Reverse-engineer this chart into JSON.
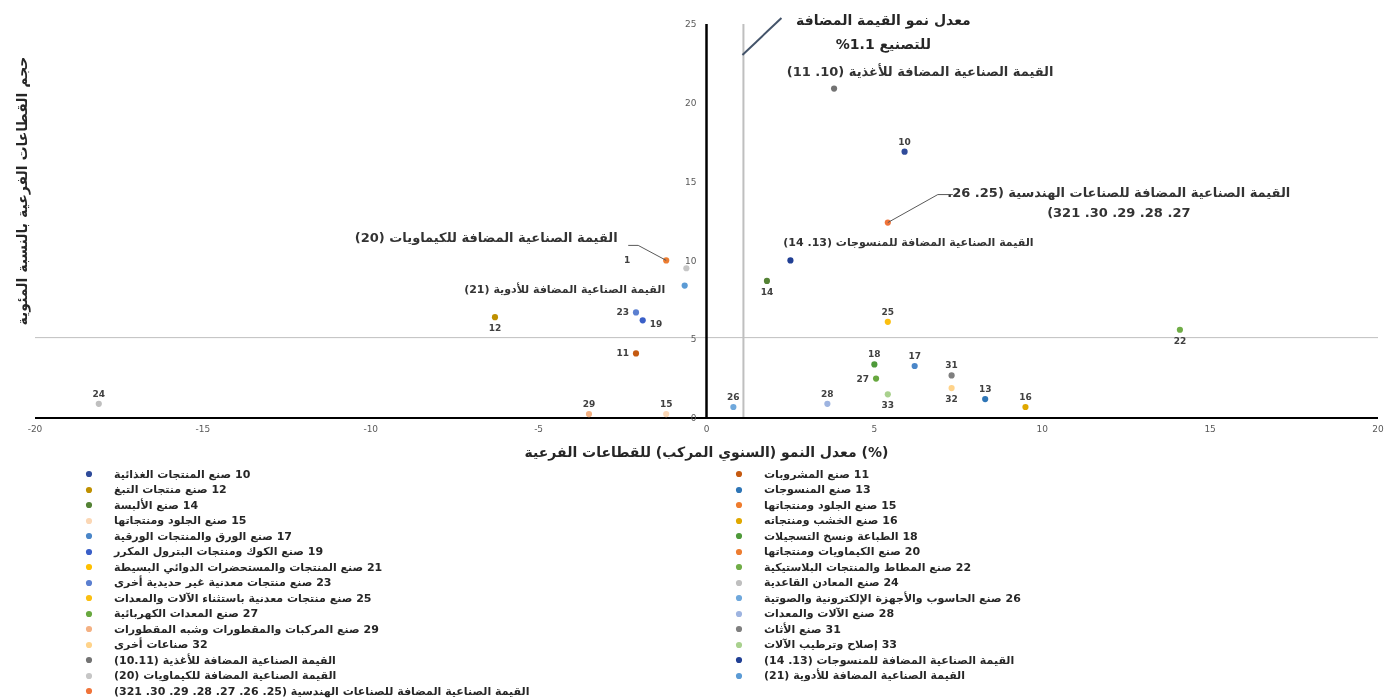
{
  "chart_data": {
    "type": "scatter",
    "xlabel": "معدل النمو (السنوي المركب) للقطاعات الفرعية (%)",
    "ylabel": "حجم القطاعات الفرعية بالنسبة المئوية",
    "xlim": [
      -20,
      20
    ],
    "ylim": [
      0,
      25
    ],
    "xticks": [
      -20,
      -15,
      -10,
      -5,
      0,
      5,
      10,
      15,
      20
    ],
    "yticks": [
      0,
      5,
      10,
      15,
      20,
      25
    ],
    "grid": false,
    "legend": "bottom",
    "marker": "circle",
    "ref_lines": [
      {
        "axis": "x",
        "value": 1.1,
        "label": "معدل نمو القيمة المضافة للتصنيع 1.1%",
        "color": "#bfbfbf"
      },
      {
        "axis": "y",
        "value": 5.1,
        "color": "#bfbfbf"
      }
    ],
    "annotations": [
      {
        "text": "القيمة الصناعية المضافة للأغذية (10. 11)",
        "x": 3.8,
        "y": 20.9
      },
      {
        "text": "القيمة الصناعية المضافة للمنسوجات (13. 14)",
        "x": 2.5,
        "y": 10.0
      },
      {
        "text": "القيمة الصناعية المضافة للكيماويات (20)",
        "x": -1.2,
        "y": 10.0
      },
      {
        "text": "القيمة الصناعية المضافة للأدوية (21)",
        "x": -0.65,
        "y": 8.4
      },
      {
        "text": "القيمة الصناعية المضافة للصناعات الهندسية (25. 26. 27. 28. 29. 30. 321)",
        "x": 5.4,
        "y": 12.4
      },
      {
        "text": "10",
        "x": 5.9,
        "y": 16.9
      },
      {
        "text": "11",
        "x": -2.1,
        "y": 4.1
      },
      {
        "text": "12",
        "x": -6.3,
        "y": 6.4
      },
      {
        "text": "13",
        "x": 8.3,
        "y": 1.2
      },
      {
        "text": "14",
        "x": 1.8,
        "y": 8.7
      },
      {
        "text": "15",
        "x": -1.2,
        "y": 0.25
      },
      {
        "text": "16",
        "x": 9.5,
        "y": 0.7
      },
      {
        "text": "17",
        "x": 6.2,
        "y": 3.3
      },
      {
        "text": "18",
        "x": 5.0,
        "y": 3.4
      },
      {
        "text": "19",
        "x": -1.9,
        "y": 6.2
      },
      {
        "text": "1",
        "x": -1.2,
        "y": 10.0
      },
      {
        "text": "22",
        "x": 14.1,
        "y": 5.6
      },
      {
        "text": "23",
        "x": -2.1,
        "y": 6.7
      },
      {
        "text": "24",
        "x": -18.1,
        "y": 0.9
      },
      {
        "text": "25",
        "x": 5.4,
        "y": 6.1
      },
      {
        "text": "26",
        "x": 0.8,
        "y": 0.7
      },
      {
        "text": "27",
        "x": 5.05,
        "y": 2.5
      },
      {
        "text": "28",
        "x": 3.6,
        "y": 0.9
      },
      {
        "text": "29",
        "x": -3.5,
        "y": 0.25
      },
      {
        "text": "31",
        "x": 7.3,
        "y": 2.7
      },
      {
        "text": "32",
        "x": 7.3,
        "y": 1.9
      },
      {
        "text": "33",
        "x": 5.4,
        "y": 1.5
      }
    ],
    "series": [
      {
        "name": "10 صنع المنتجات الغذائية",
        "color": "#2f4b9a",
        "x": [
          5.9
        ],
        "values": [
          16.9
        ]
      },
      {
        "name": "11 صنع المشروبات",
        "color": "#c55a11",
        "x": [
          -2.1
        ],
        "values": [
          4.1
        ]
      },
      {
        "name": "12 صنع منتجات التبغ",
        "color": "#bf9000",
        "x": [
          -6.3
        ],
        "values": [
          6.4
        ]
      },
      {
        "name": "13 صنع المنسوجات",
        "color": "#2e75b6",
        "x": [
          8.3
        ],
        "values": [
          1.2
        ]
      },
      {
        "name": "14 صنع الألبسة",
        "color": "#548235",
        "x": [
          1.8
        ],
        "values": [
          8.7
        ]
      },
      {
        "name": "15 صنع الجلود ومنتجاتها",
        "color": "#ef7c2e",
        "x": [
          null
        ],
        "values": [
          null
        ]
      },
      {
        "name": "15 صنع الجلود ومنتجاتها",
        "color": "#fbd7b5",
        "x": [
          -1.2
        ],
        "values": [
          0.25
        ]
      },
      {
        "name": "16 صنع الخشب ومنتجاته",
        "color": "#e0a800",
        "x": [
          9.5
        ],
        "values": [
          0.7
        ]
      },
      {
        "name": "17 صنع الورق والمنتجات الورقية",
        "color": "#4a86c8",
        "x": [
          6.2
        ],
        "values": [
          3.3
        ]
      },
      {
        "name": "18 الطباعة ونسخ التسجيلات",
        "color": "#4e9a3a",
        "x": [
          5.0
        ],
        "values": [
          3.4
        ]
      },
      {
        "name": "19 صنع الكوك ومنتجات البترول المكرر",
        "color": "#3a5fc8",
        "x": [
          -1.9
        ],
        "values": [
          6.2
        ]
      },
      {
        "name": "20 صنع الكيماويات ومنتجاتها",
        "color": "#ed7d31",
        "x": [
          -1.2
        ],
        "values": [
          10.0
        ]
      },
      {
        "name": "21 صنع المنتجات والمستحضرات الدوائي البسيطة",
        "color": "#ffc000",
        "x": [
          null
        ],
        "values": [
          null
        ]
      },
      {
        "name": "22 صنع المطاط والمنتجات البلاستيكية",
        "color": "#70ad47",
        "x": [
          14.1
        ],
        "values": [
          5.6
        ]
      },
      {
        "name": "23 صنع منتجات معدنية غير حديدية أخرى",
        "color": "#5b7fd0",
        "x": [
          -2.1
        ],
        "values": [
          6.7
        ]
      },
      {
        "name": "24 صنع المعادن القاعدية",
        "color": "#bfbfbf",
        "x": [
          -18.1
        ],
        "values": [
          0.9
        ]
      },
      {
        "name": "25 صنع منتجات معدنية باستثناء الآلات والمعدات",
        "color": "#fbbf10",
        "x": [
          5.4
        ],
        "values": [
          6.1
        ]
      },
      {
        "name": "26 صنع الحاسوب والأجهزة الإلكترونية والصوتية",
        "color": "#6fa8dc",
        "x": [
          0.8
        ],
        "values": [
          0.7
        ]
      },
      {
        "name": "27 صنع المعدات الكهربائية",
        "color": "#68a83f",
        "x": [
          5.05
        ],
        "values": [
          2.5
        ]
      },
      {
        "name": "28 صنع الآلات والمعدات",
        "color": "#9eb4e0",
        "x": [
          3.6
        ],
        "values": [
          0.9
        ]
      },
      {
        "name": "29 صنع المركبات والمقطورات وشبه المقطورات",
        "color": "#f4b183",
        "x": [
          -3.5
        ],
        "values": [
          0.25
        ]
      },
      {
        "name": "31 صنع الأثاث",
        "color": "#7f7f7f",
        "x": [
          7.3
        ],
        "values": [
          2.7
        ]
      },
      {
        "name": "32 صناعات أخرى",
        "color": "#ffd38a",
        "x": [
          7.3
        ],
        "values": [
          1.9
        ]
      },
      {
        "name": "33 إصلاح وترطيب الآلات",
        "color": "#a9d18e",
        "x": [
          5.4
        ],
        "values": [
          1.5
        ]
      },
      {
        "name": "القيمة الصناعية المضافة للأغذية (10.11)",
        "color": "#737373",
        "x": [
          3.8
        ],
        "values": [
          20.9
        ]
      },
      {
        "name": "القيمة الصناعية المضافة للمنسوجات (13. 14)",
        "color": "#203f94",
        "x": [
          2.5
        ],
        "values": [
          10.0
        ]
      },
      {
        "name": "القيمة الصناعية المضافة للكيماويات (20)",
        "color": "#c6c6c6",
        "x": [
          -0.6
        ],
        "values": [
          9.5
        ]
      },
      {
        "name": "القيمة الصناعية المضافة للأدوية (21)",
        "color": "#5b9bd5",
        "x": [
          -0.65
        ],
        "values": [
          8.4
        ]
      },
      {
        "name": "القيمة الصناعية المضافة للصناعات الهندسية (25. 26. 27. 28. 29. 30. 321)",
        "color": "#f0743a",
        "x": [
          5.4
        ],
        "values": [
          12.4
        ]
      }
    ]
  }
}
